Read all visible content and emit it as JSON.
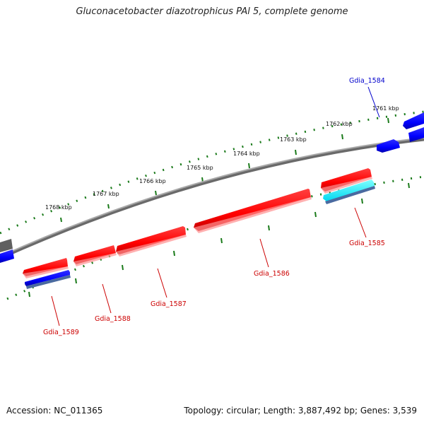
{
  "title": "Gluconacetobacter diazotrophicus PAl 5, complete genome",
  "accession_label": "Accession: NC_011365",
  "summary_label": "Topology: circular; Length: 3,887,492 bp; Genes: 3,539",
  "colors": {
    "forward_gene": "#ff0000",
    "reverse_gene": "#0000ff",
    "rna_gene": "#00e5ff",
    "backbone": "#808080",
    "tick": "#1a7a1a",
    "forward_label": "#cc0000",
    "reverse_label": "#0000cc"
  },
  "kbp_ticks": [
    {
      "label": "1761 kbp"
    },
    {
      "label": "1762 kbp"
    },
    {
      "label": "1763 kbp"
    },
    {
      "label": "1764 kbp"
    },
    {
      "label": "1765 kbp"
    },
    {
      "label": "1766 kbp"
    },
    {
      "label": "1767 kbp"
    },
    {
      "label": "1768 kbp"
    }
  ],
  "gene_labels": {
    "gdia_1584": "Gdia_1584",
    "gdia_1585": "Gdia_1585",
    "gdia_1586": "Gdia_1586",
    "gdia_1587": "Gdia_1587",
    "gdia_1588": "Gdia_1588",
    "gdia_1589": "Gdia_1589"
  }
}
